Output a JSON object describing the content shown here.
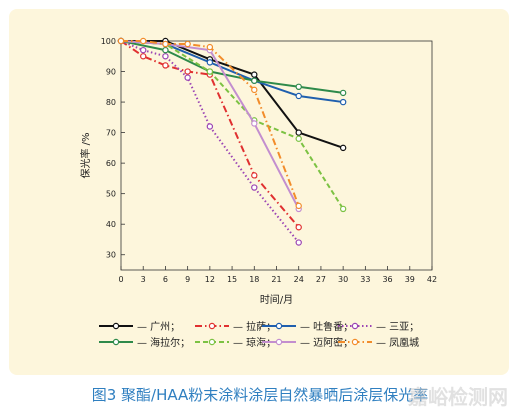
{
  "chart_data": {
    "type": "line",
    "title": "",
    "xlabel": "时间/月",
    "ylabel": "保光率 /%",
    "xlim": [
      0,
      42
    ],
    "ylim": [
      25,
      100
    ],
    "xticks": [
      0,
      3,
      6,
      9,
      12,
      15,
      18,
      21,
      24,
      27,
      30,
      33,
      36,
      39,
      42
    ],
    "yticks": [
      30,
      40,
      50,
      60,
      70,
      80,
      90,
      100
    ],
    "grid": false,
    "legend_position": "bottom",
    "series": [
      {
        "name": "广州",
        "color": "#111111",
        "dash": "solid",
        "x": [
          0,
          6,
          12,
          18,
          24,
          30
        ],
        "y": [
          100,
          100,
          94,
          89,
          70,
          65
        ]
      },
      {
        "name": "拉萨",
        "color": "#e03030",
        "dash": "dashdot",
        "x": [
          0,
          3,
          6,
          9,
          12,
          18,
          24
        ],
        "y": [
          100,
          95,
          92,
          90,
          89,
          56,
          39
        ]
      },
      {
        "name": "吐鲁番",
        "color": "#1f5fae",
        "dash": "solid",
        "x": [
          0,
          6,
          12,
          18,
          24,
          30
        ],
        "y": [
          100,
          99,
          93,
          87,
          82,
          80
        ]
      },
      {
        "name": "三亚",
        "color": "#9b44b4",
        "dash": "dot",
        "x": [
          0,
          3,
          6,
          9,
          12,
          18,
          24
        ],
        "y": [
          100,
          97,
          95,
          88,
          72,
          52,
          34
        ]
      },
      {
        "name": "海拉尔",
        "color": "#2e8a4a",
        "dash": "solid",
        "x": [
          0,
          6,
          12,
          18,
          24,
          30
        ],
        "y": [
          100,
          97,
          90,
          87,
          85,
          83
        ]
      },
      {
        "name": "琼海",
        "color": "#7cc243",
        "dash": "dash",
        "x": [
          0,
          6,
          12,
          18,
          24,
          30
        ],
        "y": [
          100,
          99,
          90,
          74,
          68,
          45
        ]
      },
      {
        "name": "迈阿密",
        "color": "#c38ecf",
        "dash": "solid",
        "x": [
          0,
          6,
          12,
          18,
          24
        ],
        "y": [
          100,
          99,
          97,
          73,
          45
        ]
      },
      {
        "name": "凤凰城",
        "color": "#f28c2a",
        "dash": "dashdot",
        "x": [
          0,
          3,
          6,
          9,
          12,
          18,
          24
        ],
        "y": [
          100,
          100,
          99,
          99,
          98,
          84,
          46
        ]
      }
    ]
  },
  "caption": "图3 聚酯/HAA粉末涂料涂层自然暴晒后涂层保光率",
  "watermark": "嘉峪检测网"
}
